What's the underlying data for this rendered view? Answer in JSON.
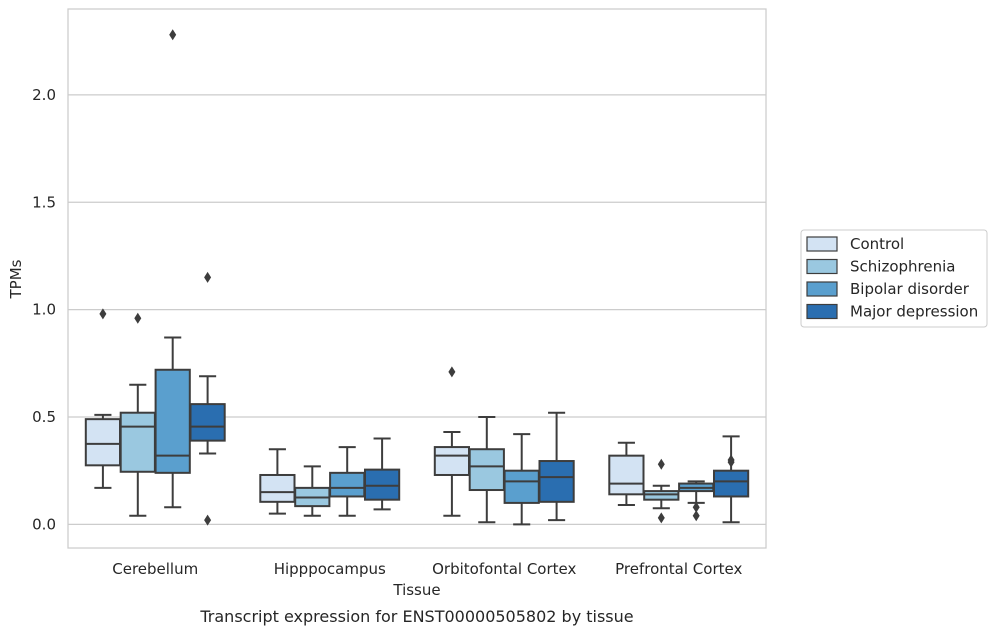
{
  "chart_data": {
    "type": "boxplot",
    "caption": "Transcript expression for ENST00000505802 by tissue",
    "xlabel": "Tissue",
    "ylabel": "TPMs",
    "ylim": [
      -0.11,
      2.4
    ],
    "yticks": [
      "0.0",
      "0.5",
      "1.0",
      "1.5",
      "2.0"
    ],
    "ytick_values": [
      0.0,
      0.5,
      1.0,
      1.5,
      2.0
    ],
    "grid": "horizontal",
    "legend_position": "right",
    "categories": [
      "Cerebellum",
      "Hipppocampus",
      "Orbitofontal Cortex",
      "Prefrontal Cortex"
    ],
    "series": [
      {
        "name": "Control",
        "color": "#d3e3f3",
        "boxes": [
          {
            "whislo": 0.17,
            "q1": 0.275,
            "med": 0.375,
            "q3": 0.49,
            "whishi": 0.51,
            "fliers": [
              0.98
            ]
          },
          {
            "whislo": 0.05,
            "q1": 0.105,
            "med": 0.15,
            "q3": 0.23,
            "whishi": 0.35,
            "fliers": []
          },
          {
            "whislo": 0.04,
            "q1": 0.23,
            "med": 0.32,
            "q3": 0.36,
            "whishi": 0.43,
            "fliers": [
              0.71
            ]
          },
          {
            "whislo": 0.09,
            "q1": 0.14,
            "med": 0.19,
            "q3": 0.32,
            "whishi": 0.38,
            "fliers": []
          }
        ]
      },
      {
        "name": "Schizophrenia",
        "color": "#9ac8e0",
        "boxes": [
          {
            "whislo": 0.04,
            "q1": 0.245,
            "med": 0.455,
            "q3": 0.52,
            "whishi": 0.65,
            "fliers": [
              0.96
            ]
          },
          {
            "whislo": 0.04,
            "q1": 0.085,
            "med": 0.125,
            "q3": 0.17,
            "whishi": 0.27,
            "fliers": []
          },
          {
            "whislo": 0.01,
            "q1": 0.16,
            "med": 0.27,
            "q3": 0.35,
            "whishi": 0.5,
            "fliers": []
          },
          {
            "whislo": 0.075,
            "q1": 0.115,
            "med": 0.14,
            "q3": 0.155,
            "whishi": 0.18,
            "fliers": [
              0.28,
              0.03
            ]
          }
        ]
      },
      {
        "name": "Bipolar disorder",
        "color": "#5a9fce",
        "boxes": [
          {
            "whislo": 0.08,
            "q1": 0.24,
            "med": 0.32,
            "q3": 0.72,
            "whishi": 0.87,
            "fliers": [
              2.28
            ]
          },
          {
            "whislo": 0.04,
            "q1": 0.13,
            "med": 0.17,
            "q3": 0.24,
            "whishi": 0.36,
            "fliers": []
          },
          {
            "whislo": 0.0,
            "q1": 0.1,
            "med": 0.2,
            "q3": 0.25,
            "whishi": 0.42,
            "fliers": []
          },
          {
            "whislo": 0.1,
            "q1": 0.155,
            "med": 0.17,
            "q3": 0.19,
            "whishi": 0.2,
            "fliers": [
              0.08,
              0.04
            ]
          }
        ]
      },
      {
        "name": "Major depression",
        "color": "#2a6eb0",
        "boxes": [
          {
            "whislo": 0.33,
            "q1": 0.39,
            "med": 0.455,
            "q3": 0.56,
            "whishi": 0.69,
            "fliers": [
              1.15,
              0.02
            ]
          },
          {
            "whislo": 0.07,
            "q1": 0.115,
            "med": 0.18,
            "q3": 0.255,
            "whishi": 0.4,
            "fliers": []
          },
          {
            "whislo": 0.02,
            "q1": 0.105,
            "med": 0.22,
            "q3": 0.295,
            "whishi": 0.52,
            "fliers": []
          },
          {
            "whislo": 0.01,
            "q1": 0.13,
            "med": 0.2,
            "q3": 0.25,
            "whishi": 0.41,
            "fliers": [
              0.3,
              0.29
            ]
          }
        ]
      }
    ]
  }
}
